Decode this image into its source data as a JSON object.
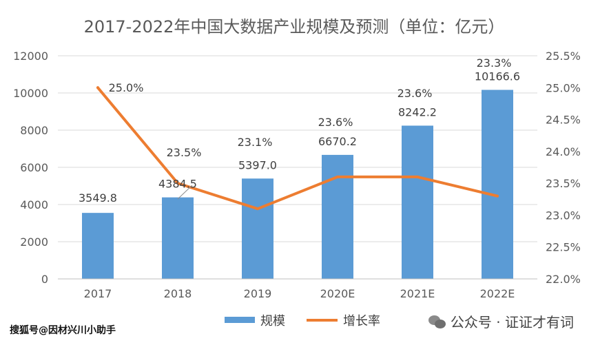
{
  "chart_data": {
    "type": "bar",
    "title": "2017-2022年中国大数据产业规模及预测（单位：亿元）",
    "categories": [
      "2017",
      "2018",
      "2019",
      "2020E",
      "2021E",
      "2022E"
    ],
    "series": [
      {
        "name": "规模",
        "chart_type": "bar",
        "axis": "left",
        "values": [
          3549.8,
          4384.5,
          5397.0,
          6670.2,
          8242.2,
          10166.6
        ],
        "labels": [
          "3549.8",
          "4384.5",
          "5397.0",
          "6670.2",
          "8242.2",
          "10166.6"
        ],
        "color": "#5b9bd5"
      },
      {
        "name": "增长率",
        "chart_type": "line",
        "axis": "right",
        "values": [
          25.0,
          23.5,
          23.1,
          23.6,
          23.6,
          23.3
        ],
        "labels": [
          "25.0%",
          "23.5%",
          "23.1%",
          "23.6%",
          "23.6%",
          "23.3%"
        ],
        "color": "#ed7d31"
      }
    ],
    "y_left": {
      "range": [
        0,
        12000
      ],
      "ticks": [
        0,
        2000,
        4000,
        6000,
        8000,
        10000,
        12000
      ],
      "tick_labels": [
        "0",
        "2000",
        "4000",
        "6000",
        "8000",
        "10000",
        "12000"
      ]
    },
    "y_right": {
      "range": [
        22.0,
        25.5
      ],
      "ticks": [
        22.0,
        22.5,
        23.0,
        23.5,
        24.0,
        24.5,
        25.0,
        25.5
      ],
      "tick_labels": [
        "22.0%",
        "22.5%",
        "23.0%",
        "23.5%",
        "24.0%",
        "24.5%",
        "25.0%",
        "25.5%"
      ]
    },
    "grid": true,
    "legend_position": "bottom-center"
  },
  "footer": {
    "source": "搜狐号@因材兴川小助手",
    "watermark": "公众号 · 证证才有词"
  },
  "icons": {
    "watermark_icon": "wechat-icon"
  }
}
